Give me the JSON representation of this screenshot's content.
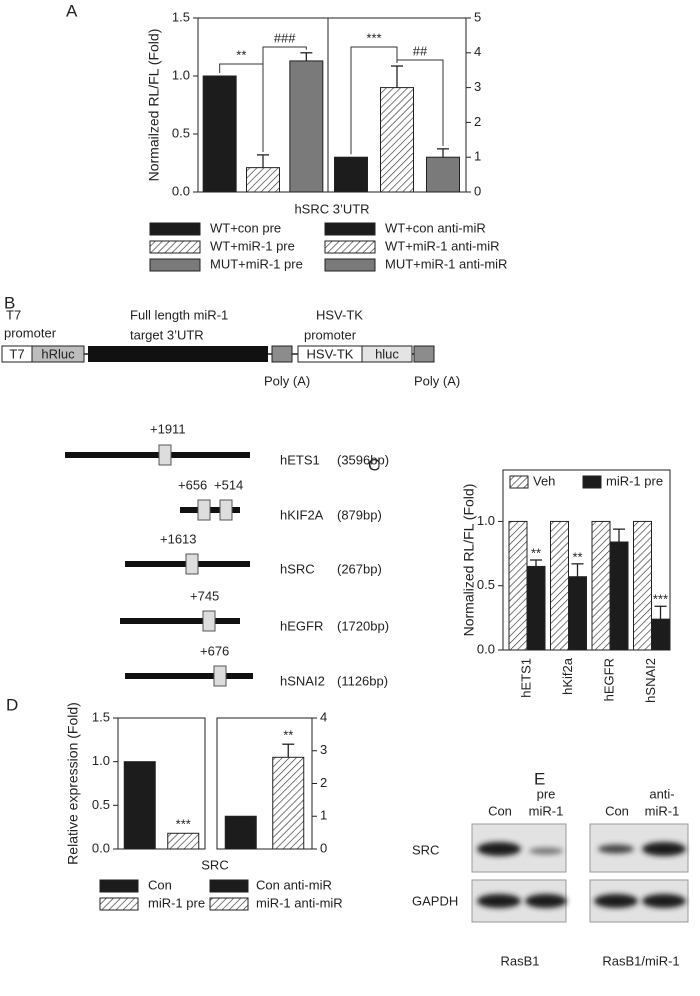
{
  "panels": {
    "a": "A",
    "b": "B",
    "c": "C",
    "d": "D",
    "e": "E"
  },
  "chart_data": [
    {
      "type": "split-bar",
      "ylabel": "Normailzed RL/FL (Fold)",
      "xlabel": "hSRC 3’UTR",
      "ylim": [
        0,
        1.5
      ],
      "yticks": [
        {
          "value": 0,
          "label": "0.0"
        },
        0.5,
        {
          "value": 1,
          "label": "1.0"
        },
        1.5
      ],
      "y2lim": [
        0,
        5
      ],
      "y2ticks": [
        0,
        1,
        2,
        3,
        4,
        5
      ],
      "series": [
        {
          "name": "WT+con pre",
          "color": "#1c1c1c",
          "pattern": "solid",
          "values": [
            1.0
          ]
        },
        {
          "name": "WT+miR-1 pre",
          "color": "#ffffff",
          "pattern": "hatch",
          "values": [
            0.21
          ],
          "errors": [
            0.11
          ]
        },
        {
          "name": "MUT+miR-1 pre",
          "color": "#7a7a7a",
          "pattern": "solid",
          "values": [
            1.13
          ],
          "errors": [
            0.07
          ]
        },
        {
          "name": "WT+con anti-miR",
          "color": "#1c1c1c",
          "pattern": "solid",
          "axis": "y2",
          "values": [
            1.0
          ]
        },
        {
          "name": "WT+miR-1 anti-miR",
          "color": "#ffffff",
          "pattern": "hatch",
          "axis": "y2",
          "values": [
            3.0
          ],
          "errors": [
            0.62
          ]
        },
        {
          "name": "MUT+miR-1 anti-miR",
          "color": "#7a7a7a",
          "pattern": "solid",
          "axis": "y2",
          "values": [
            1.0
          ],
          "errors": [
            0.24
          ]
        }
      ],
      "annotations": [
        "**",
        "###",
        "***",
        "##"
      ]
    },
    {
      "type": "bar",
      "ylabel": "Normalized RL/FL (Fold)",
      "categories": [
        "hETS1",
        "hKif2a",
        "hEGFR",
        "hSNAI2"
      ],
      "ylim": [
        0,
        1.4
      ],
      "yticks": [
        {
          "value": 0,
          "label": "0.0"
        },
        0.5,
        {
          "value": 1,
          "label": "1.0"
        }
      ],
      "series": [
        {
          "name": "Veh",
          "color": "#ffffff",
          "pattern": "hatch",
          "values": [
            1.0,
            1.0,
            1.0,
            1.0
          ]
        },
        {
          "name": "miR-1 pre",
          "color": "#1c1c1c",
          "pattern": "solid",
          "values": [
            0.65,
            0.57,
            0.84,
            0.24
          ],
          "errors": [
            0.05,
            0.1,
            0.1,
            0.1
          ],
          "significance": [
            "**",
            "**",
            null,
            "***"
          ]
        }
      ]
    },
    {
      "type": "split-bar",
      "ylabel": "Relative expression (Fold)",
      "xlabel": "SRC",
      "ylim": [
        0,
        1.5
      ],
      "yticks": [
        {
          "value": 0,
          "label": "0.0"
        },
        0.5,
        {
          "value": 1,
          "label": "1.0"
        },
        1.5
      ],
      "y2lim": [
        0,
        4
      ],
      "y2ticks": [
        0,
        1,
        2,
        3,
        4
      ],
      "series": [
        {
          "name": "Con",
          "color": "#1c1c1c",
          "pattern": "solid",
          "values": [
            1.0
          ]
        },
        {
          "name": "miR-1 pre",
          "color": "#ffffff",
          "pattern": "hatch",
          "values": [
            0.18
          ],
          "significance": [
            "***"
          ]
        },
        {
          "name": "Con anti-miR",
          "color": "#1c1c1c",
          "pattern": "solid",
          "axis": "y2",
          "values": [
            1.0
          ]
        },
        {
          "name": "miR-1 anti-miR",
          "color": "#ffffff",
          "pattern": "hatch",
          "axis": "y2",
          "values": [
            2.8
          ],
          "errors": [
            0.4
          ],
          "significance": [
            "**"
          ]
        }
      ]
    }
  ],
  "diagram": {
    "labels": {
      "t7": [
        "T7",
        "promoter"
      ],
      "utr": [
        "Full length miR-1",
        "target 3’UTR"
      ],
      "hsv": [
        "HSV-TK",
        "promoter"
      ]
    },
    "boxes": {
      "t7": "T7",
      "hrluc": "hRluc",
      "hsvtk": "HSV-TK",
      "hluc": "hluc"
    },
    "polya": [
      "Poly (A)",
      "Poly (A)"
    ],
    "genes": [
      {
        "name": "hETS1",
        "size": "(3596bp)",
        "sites": [
          "+1911"
        ]
      },
      {
        "name": "hKIF2A",
        "size": "(879bp)",
        "sites": [
          "+656",
          "+514"
        ]
      },
      {
        "name": "hSRC",
        "size": "(267bp)",
        "sites": [
          "+1613"
        ]
      },
      {
        "name": "hEGFR",
        "size": "(1720bp)",
        "sites": [
          "+745"
        ]
      },
      {
        "name": "hSNAI2",
        "size": "(1126bp)",
        "sites": [
          "+676"
        ]
      }
    ]
  },
  "blot": {
    "columns": [
      "Con",
      [
        "pre",
        "miR-1"
      ],
      "Con",
      [
        "anti-",
        "miR-1"
      ]
    ],
    "rows": [
      "SRC",
      "GAPDH"
    ],
    "groups": [
      "RasB1",
      "RasB1/miR-1"
    ]
  }
}
